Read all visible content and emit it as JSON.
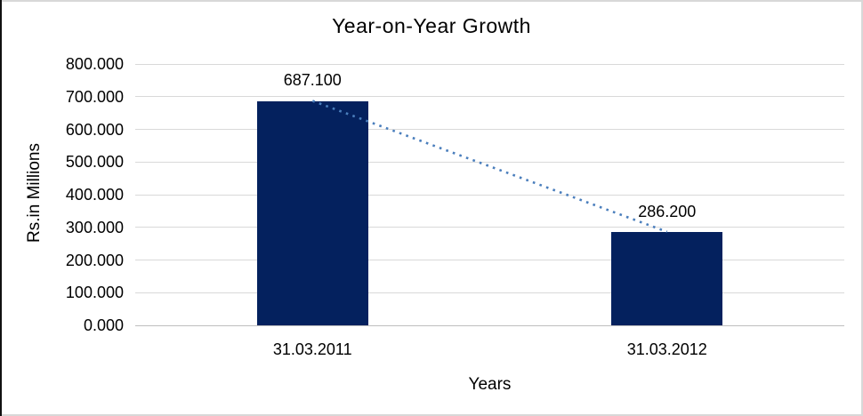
{
  "chart_data": {
    "type": "bar",
    "title": "Year-on-Year Growth",
    "xlabel": "Years",
    "ylabel": "Rs.in Millions",
    "categories": [
      "31.03.2011",
      "31.03.2012"
    ],
    "values": [
      687.1,
      286.2
    ],
    "value_labels": [
      "687.100",
      "286.200"
    ],
    "yticks": [
      "800.000",
      "700.000",
      "600.000",
      "500.000",
      "400.000",
      "300.000",
      "200.000",
      "100.000",
      "0.000"
    ],
    "ylim": [
      0,
      800
    ],
    "grid": true,
    "legend": "none",
    "trendline": {
      "style": "dotted",
      "color": "#4A7EBC",
      "from_value": 687.1,
      "to_value": 286.2
    },
    "colors": {
      "bar": "#04215E",
      "gridline": "#D9D9D9",
      "baseline": "#BFBFBF",
      "text": "#000000",
      "frame_border": "#D8D8D8",
      "left_edge": "#111111"
    }
  }
}
